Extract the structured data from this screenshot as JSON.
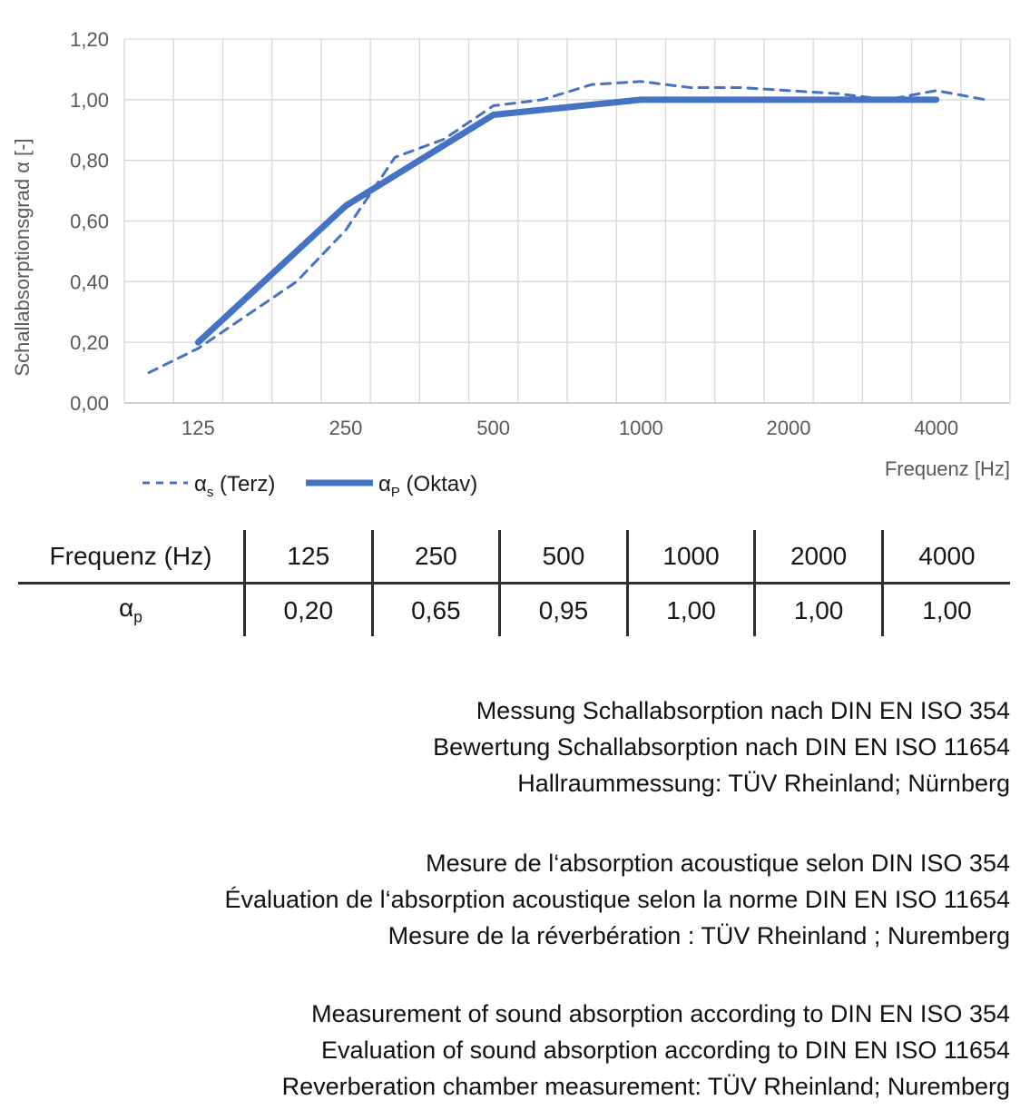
{
  "chart_data": {
    "type": "line",
    "title": "",
    "xlabel": "Frequenz [Hz]",
    "ylabel": "Schallabsorptionsgrad α [-]",
    "x_scale": "logarithmic (third-octave band categories)",
    "x_categories": [
      100,
      125,
      160,
      200,
      250,
      315,
      400,
      500,
      630,
      800,
      1000,
      1250,
      1600,
      2000,
      2500,
      3150,
      4000,
      5000
    ],
    "x_ticks": [
      {
        "at": 125,
        "label": "125"
      },
      {
        "at": 250,
        "label": "250"
      },
      {
        "at": 500,
        "label": "500"
      },
      {
        "at": 1000,
        "label": "1000"
      },
      {
        "at": 2000,
        "label": "2000"
      },
      {
        "at": 4000,
        "label": "4000"
      }
    ],
    "ylim": [
      0,
      1.2
    ],
    "y_tick_step": 0.2,
    "y_tick_labels": [
      "0,00",
      "0,20",
      "0,40",
      "0,60",
      "0,80",
      "1,00",
      "1,20"
    ],
    "grid": true,
    "legend_position": "bottom-left",
    "series": [
      {
        "name": "αs (Terz)",
        "style": "dashed",
        "x": [
          100,
          125,
          160,
          200,
          250,
          315,
          400,
          500,
          630,
          800,
          1000,
          1250,
          1600,
          2000,
          2500,
          3150,
          4000,
          5000
        ],
        "values": [
          0.1,
          0.18,
          0.29,
          0.4,
          0.57,
          0.81,
          0.87,
          0.98,
          1.0,
          1.05,
          1.06,
          1.04,
          1.04,
          1.03,
          1.02,
          1.0,
          1.03,
          1.0
        ]
      },
      {
        "name": "αP (Oktav)",
        "style": "solid",
        "x": [
          125,
          250,
          500,
          1000,
          2000,
          4000
        ],
        "values": [
          0.2,
          0.65,
          0.95,
          1.0,
          1.0,
          1.0
        ]
      }
    ],
    "legend": [
      {
        "base": "α",
        "sub": "s",
        "rest": " (Terz)",
        "sample": "dashed"
      },
      {
        "base": "α",
        "sub": "P",
        "rest": " (Oktav)",
        "sample": "solid"
      }
    ],
    "colors": {
      "line": "#4472C4",
      "grid": "#D9D9D9",
      "axis": "#C3C3C3",
      "tick_text": "#595959",
      "legend_text": "#1a1a1a"
    }
  },
  "table": {
    "header": [
      "Frequenz (Hz)",
      "125",
      "250",
      "500",
      "1000",
      "2000",
      "4000"
    ],
    "row_label_base": "α",
    "row_label_sub": "p",
    "row_values": [
      "0,20",
      "0,65",
      "0,95",
      "1,00",
      "1,00",
      "1,00"
    ]
  },
  "notes": {
    "de": [
      "Messung Schallabsorption nach DIN EN ISO 354",
      "Bewertung Schallabsorption nach DIN EN ISO 11654",
      "Hallraummessung: TÜV Rheinland; Nürnberg"
    ],
    "fr": [
      "Mesure de l‘absorption acoustique selon DIN ISO 354",
      "Évaluation de l‘absorption acoustique selon la norme DIN EN ISO 11654",
      "Mesure de la réverbération : TÜV Rheinland ; Nuremberg"
    ],
    "en": [
      "Measurement of sound absorption according to DIN EN ISO 354",
      "Evaluation of sound absorption according to DIN EN ISO 11654",
      "Reverberation chamber measurement: TÜV Rheinland; Nuremberg"
    ]
  }
}
